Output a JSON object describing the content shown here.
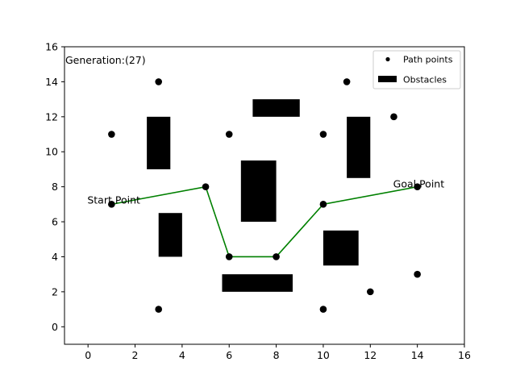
{
  "chart_data": {
    "type": "scatter",
    "xlim": [
      -1,
      16
    ],
    "ylim": [
      -1,
      16
    ],
    "x_ticks": [
      0,
      2,
      4,
      6,
      8,
      10,
      12,
      14,
      16
    ],
    "y_ticks": [
      0,
      2,
      4,
      6,
      8,
      10,
      12,
      14,
      16
    ],
    "grid": false,
    "legend_position": "top-right",
    "annotation_generation": "Generation:(27)",
    "annotation_start": "Start Point",
    "annotation_goal": "Goal Point",
    "start_point": [
      1,
      7
    ],
    "goal_point": [
      14,
      8
    ],
    "path_points": {
      "name": "Path points",
      "color": "#000000",
      "points": [
        [
          1,
          11
        ],
        [
          3,
          14
        ],
        [
          1,
          7
        ],
        [
          5,
          8
        ],
        [
          6,
          11
        ],
        [
          6,
          4
        ],
        [
          8,
          4
        ],
        [
          10,
          11
        ],
        [
          10,
          7
        ],
        [
          11,
          14
        ],
        [
          13,
          12
        ],
        [
          14,
          8
        ],
        [
          12,
          2
        ],
        [
          14,
          3
        ],
        [
          3,
          1
        ],
        [
          10,
          1
        ]
      ]
    },
    "path": {
      "color": "#008000",
      "points": [
        [
          1,
          7
        ],
        [
          5,
          8
        ],
        [
          6,
          4
        ],
        [
          8,
          4
        ],
        [
          10,
          7
        ],
        [
          14,
          8
        ]
      ]
    },
    "obstacles": {
      "name": "Obstacles",
      "color": "#000000",
      "rects": [
        [
          2.5,
          9,
          3.5,
          12
        ],
        [
          3,
          4,
          4,
          6.5
        ],
        [
          7,
          12,
          9,
          13
        ],
        [
          6.5,
          6,
          8,
          9.5
        ],
        [
          5.7,
          2,
          8.7,
          3
        ],
        [
          11,
          8.5,
          12,
          12
        ],
        [
          10,
          3.5,
          11.5,
          5.5
        ]
      ]
    }
  }
}
